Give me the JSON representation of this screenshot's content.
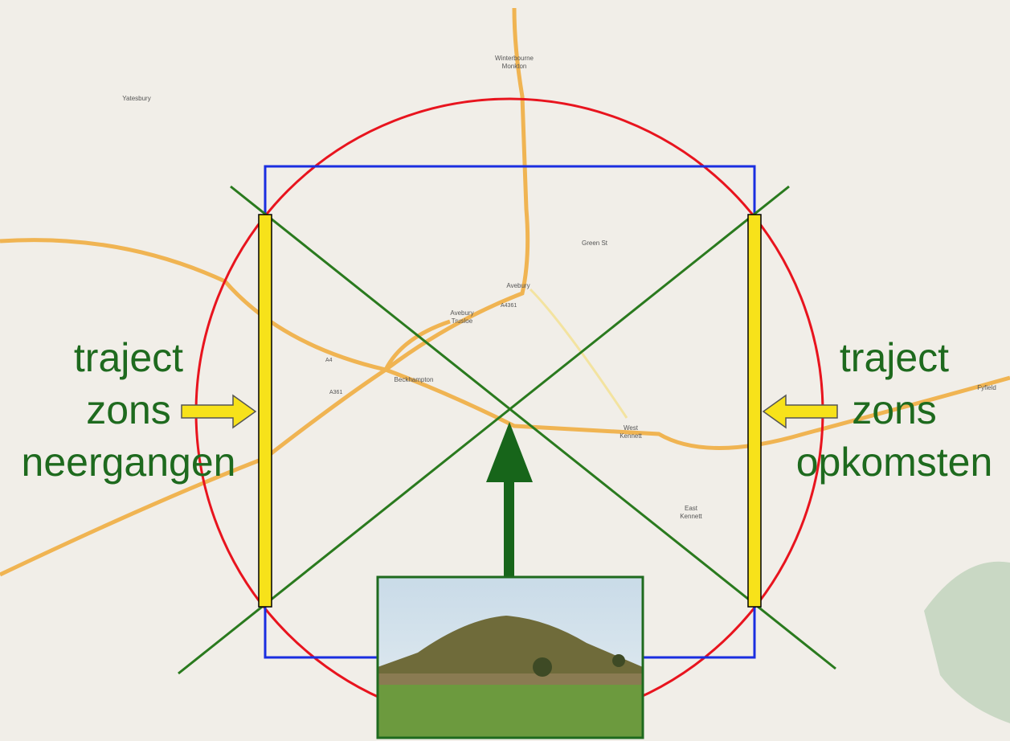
{
  "diagram": {
    "left_label": {
      "lines": [
        "traject",
        "zons",
        "neergangen"
      ]
    },
    "right_label": {
      "lines": [
        "traject",
        "zons",
        "opkomsten"
      ]
    }
  },
  "map": {
    "places": [
      {
        "lines": [
          "Winterbourne",
          "Monkton"
        ]
      },
      {
        "lines": [
          "Yatesbury"
        ]
      },
      {
        "lines": [
          "Avebury"
        ]
      },
      {
        "lines": [
          "Avebury",
          "Trusloe"
        ]
      },
      {
        "lines": [
          "Beckhampton"
        ]
      },
      {
        "lines": [
          "West",
          "Kennett"
        ]
      },
      {
        "lines": [
          "East",
          "Kennett"
        ]
      },
      {
        "lines": [
          "Green St"
        ]
      },
      {
        "lines": [
          "Fyfield"
        ]
      }
    ],
    "roads": [
      "A4",
      "A4361",
      "A361"
    ]
  }
}
